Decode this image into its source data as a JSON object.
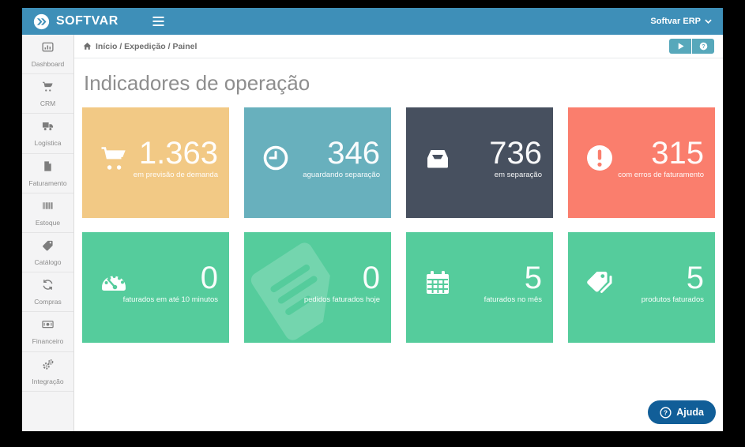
{
  "navbar": {
    "brand": "SOFTVAR",
    "user_menu": "Softvar ERP",
    "accent_color": "#3e8fb8"
  },
  "sidebar": {
    "items": [
      {
        "id": "dashboard",
        "label": "Dashboard",
        "icon": "dashboard-icon"
      },
      {
        "id": "crm",
        "label": "CRM",
        "icon": "cart-icon"
      },
      {
        "id": "logistica",
        "label": "Logística",
        "icon": "truck-icon"
      },
      {
        "id": "faturamento",
        "label": "Faturamento",
        "icon": "invoice-icon"
      },
      {
        "id": "estoque",
        "label": "Estoque",
        "icon": "barcode-icon"
      },
      {
        "id": "catalogo",
        "label": "Catálogo",
        "icon": "tag-icon"
      },
      {
        "id": "compras",
        "label": "Compras",
        "icon": "sync-icon"
      },
      {
        "id": "financeiro",
        "label": "Financeiro",
        "icon": "money-icon"
      },
      {
        "id": "integracao",
        "label": "Integração",
        "icon": "gears-icon"
      }
    ]
  },
  "breadcrumb": {
    "text": "Início / Expedição / Painel"
  },
  "toolbar": {
    "buttons": [
      {
        "id": "play",
        "icon": "play-icon"
      },
      {
        "id": "help",
        "icon": "question-icon"
      }
    ],
    "button_color": "#57a8bb"
  },
  "page": {
    "title": "Indicadores de operação"
  },
  "cards": [
    {
      "id": "previsao-demanda",
      "value": "1.363",
      "label": "em previsão de demanda",
      "color": "#f2c985",
      "icon": "cart-icon"
    },
    {
      "id": "aguardando-separacao",
      "value": "346",
      "label": "aguardando separação",
      "color": "#68b0bd",
      "icon": "clock-icon"
    },
    {
      "id": "em-separacao",
      "value": "736",
      "label": "em separação",
      "color": "#47505f",
      "icon": "inbox-icon"
    },
    {
      "id": "erros-faturamento",
      "value": "315",
      "label": "com erros de faturamento",
      "color": "#fa7e6d",
      "icon": "exclamation-icon"
    },
    {
      "id": "faturados-10-minutos",
      "value": "0",
      "label": "faturados em até 10 minutos",
      "color": "#55cc9c",
      "icon": "gauge-icon"
    },
    {
      "id": "pedidos-faturados-hoje",
      "value": "0",
      "label": "pedidos faturados hoje",
      "color": "#55cc9c",
      "icon": "document-icon",
      "watermark": true
    },
    {
      "id": "faturados-no-mes",
      "value": "5",
      "label": "faturados no mês",
      "color": "#55cc9c",
      "icon": "calendar-icon"
    },
    {
      "id": "produtos-faturados",
      "value": "5",
      "label": "produtos faturados",
      "color": "#55cc9c",
      "icon": "tags-icon"
    }
  ],
  "help_button": {
    "label": "Ajuda",
    "color": "#115e98"
  }
}
